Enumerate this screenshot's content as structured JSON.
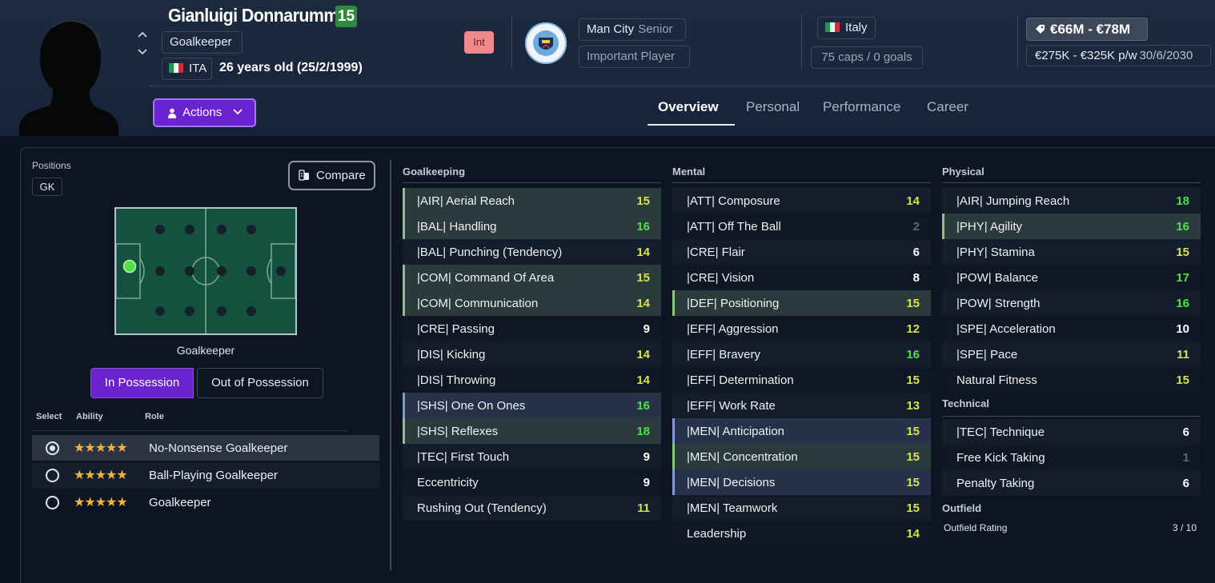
{
  "player": {
    "name": "Gianluigi Donnarumma",
    "number": "15",
    "position": "Goalkeeper",
    "nationality_code": "ITA",
    "age_text": "26 years old (25/2/1999)",
    "int_badge": "Int",
    "club": "Man City",
    "club_status": "Senior",
    "squad_status": "Important Player",
    "country": "Italy",
    "caps": "75 caps / 0 goals",
    "value": "€66M - €78M",
    "wage": "€275K - €325K p/w",
    "contract_end": "30/6/2030",
    "club_crest_text": "MANCHESTER CITY"
  },
  "actions_label": "Actions",
  "tabs": [
    "Overview",
    "Personal",
    "Performance",
    "Career"
  ],
  "active_tab": "Overview",
  "left": {
    "positions_label": "Positions",
    "position_code": "GK",
    "compare_label": "Compare",
    "pitch_caption": "Goalkeeper",
    "in_possession": "In Possession",
    "out_possession": "Out of Possession",
    "columns": [
      "Select",
      "Ability",
      "Role"
    ],
    "roles": [
      {
        "name": "No-Nonsense Goalkeeper",
        "stars": "★★★★★",
        "selected": true
      },
      {
        "name": "Ball-Playing Goalkeeper",
        "stars": "★★★★★",
        "selected": false
      },
      {
        "name": "Goalkeeper",
        "stars": "★★★★★",
        "selected": false
      }
    ]
  },
  "colors": {
    "accent": "#6b22cf",
    "green": "#4fe04a",
    "yellow": "#d7e34a",
    "grey": "#5f6876"
  },
  "attributes": {
    "goalkeeping": {
      "title": "Goalkeeping",
      "items": [
        {
          "label": "|AIR| Aerial Reach",
          "value": "15",
          "hl": "green"
        },
        {
          "label": "|BAL| Handling",
          "value": "16",
          "hl": "green"
        },
        {
          "label": "|BAL| Punching (Tendency)",
          "value": "14",
          "hl": ""
        },
        {
          "label": "|COM| Command Of Area",
          "value": "15",
          "hl": "green"
        },
        {
          "label": "|COM| Communication",
          "value": "14",
          "hl": "green"
        },
        {
          "label": "|CRE| Passing",
          "value": "9",
          "hl": ""
        },
        {
          "label": "|DIS| Kicking",
          "value": "14",
          "hl": ""
        },
        {
          "label": "|DIS| Throwing",
          "value": "14",
          "hl": ""
        },
        {
          "label": "|SHS| One On Ones",
          "value": "16",
          "hl": "blue"
        },
        {
          "label": "|SHS| Reflexes",
          "value": "18",
          "hl": "green"
        },
        {
          "label": "|TEC| First Touch",
          "value": "9",
          "hl": ""
        },
        {
          "label": "Eccentricity",
          "value": "9",
          "hl": ""
        },
        {
          "label": "Rushing Out (Tendency)",
          "value": "11",
          "hl": ""
        }
      ]
    },
    "mental": {
      "title": "Mental",
      "items": [
        {
          "label": "|ATT| Composure",
          "value": "14",
          "hl": ""
        },
        {
          "label": "|ATT| Off The Ball",
          "value": "2",
          "hl": ""
        },
        {
          "label": "|CRE| Flair",
          "value": "6",
          "hl": ""
        },
        {
          "label": "|CRE| Vision",
          "value": "8",
          "hl": ""
        },
        {
          "label": "|DEF| Positioning",
          "value": "15",
          "hl": "green"
        },
        {
          "label": "|EFF| Aggression",
          "value": "12",
          "hl": ""
        },
        {
          "label": "|EFF| Bravery",
          "value": "16",
          "hl": ""
        },
        {
          "label": "|EFF| Determination",
          "value": "15",
          "hl": ""
        },
        {
          "label": "|EFF| Work Rate",
          "value": "13",
          "hl": ""
        },
        {
          "label": "|MEN| Anticipation",
          "value": "15",
          "hl": "blue"
        },
        {
          "label": "|MEN| Concentration",
          "value": "15",
          "hl": "green"
        },
        {
          "label": "|MEN| Decisions",
          "value": "15",
          "hl": "blue"
        },
        {
          "label": "|MEN| Teamwork",
          "value": "15",
          "hl": ""
        },
        {
          "label": "Leadership",
          "value": "14",
          "hl": ""
        }
      ]
    },
    "physical": {
      "title": "Physical",
      "items": [
        {
          "label": "|AIR| Jumping Reach",
          "value": "18",
          "hl": ""
        },
        {
          "label": "|PHY| Agility",
          "value": "16",
          "hl": "green"
        },
        {
          "label": "|PHY| Stamina",
          "value": "15",
          "hl": ""
        },
        {
          "label": "|POW| Balance",
          "value": "17",
          "hl": ""
        },
        {
          "label": "|POW| Strength",
          "value": "16",
          "hl": ""
        },
        {
          "label": "|SPE| Acceleration",
          "value": "10",
          "hl": ""
        },
        {
          "label": "|SPE| Pace",
          "value": "11",
          "hl": ""
        },
        {
          "label": "Natural Fitness",
          "value": "15",
          "hl": ""
        }
      ]
    },
    "technical": {
      "title": "Technical",
      "items": [
        {
          "label": "|TEC| Technique",
          "value": "6",
          "hl": ""
        },
        {
          "label": "Free Kick Taking",
          "value": "1",
          "hl": ""
        },
        {
          "label": "Penalty Taking",
          "value": "6",
          "hl": ""
        }
      ]
    },
    "outfield": {
      "title": "Outfield",
      "rating_label": "Outfield Rating",
      "rating_value": "3 / 10"
    }
  }
}
